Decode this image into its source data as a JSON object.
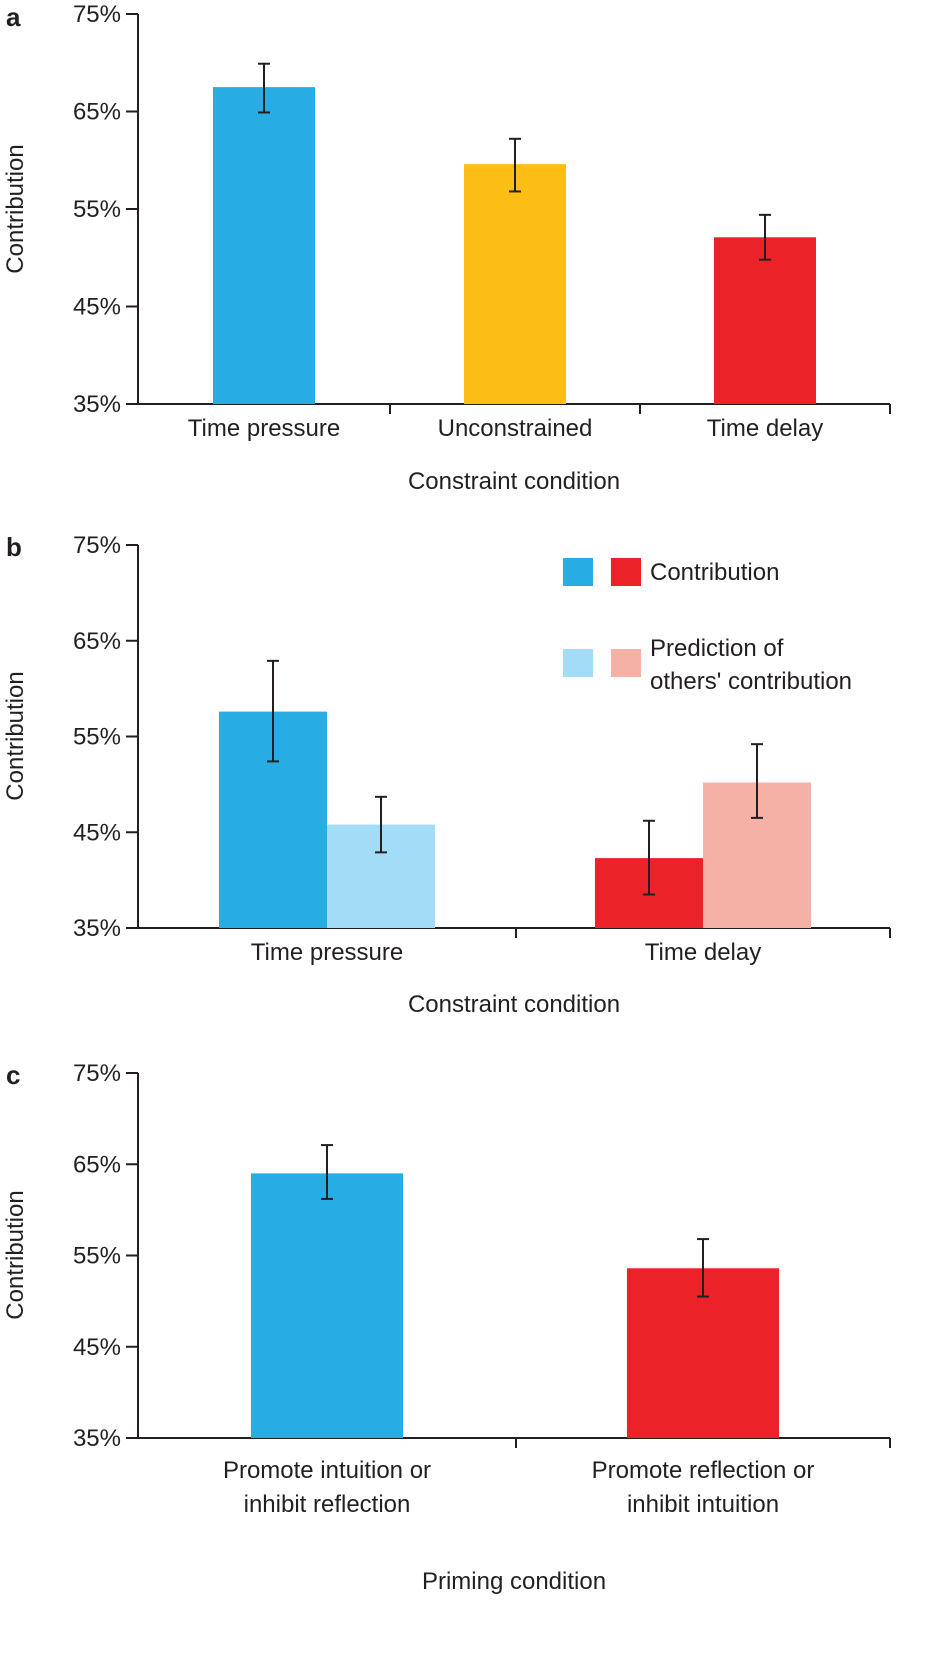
{
  "colors": {
    "blue": "#27ace3",
    "light_blue": "#a3dcf6",
    "yellow": "#fcbd14",
    "red": "#ec2229",
    "light_red": "#f6b1a7",
    "ink": "#231f20"
  },
  "chart_data": [
    {
      "panel": "a",
      "type": "bar",
      "ylabel": "Contribution",
      "xlabel": "Constraint condition",
      "ylim": [
        35,
        75
      ],
      "yticks": [
        35,
        45,
        55,
        65,
        75
      ],
      "ytick_labels": [
        "35%",
        "45%",
        "55%",
        "65%",
        "75%"
      ],
      "categories": [
        [
          "Time pressure"
        ],
        [
          "Unconstrained"
        ],
        [
          "Time delay"
        ]
      ],
      "series": [
        {
          "values": [
            67.5,
            59.6,
            52.1
          ],
          "error_low": [
            64.9,
            56.8,
            49.8
          ],
          "error_high": [
            69.9,
            62.2,
            54.4
          ],
          "colors": [
            "#27ace3",
            "#fcbd14",
            "#ec2229"
          ]
        }
      ],
      "grid": false
    },
    {
      "panel": "b",
      "type": "bar",
      "ylabel": "Contribution",
      "xlabel": "Constraint condition",
      "ylim": [
        35,
        75
      ],
      "yticks": [
        35,
        45,
        55,
        65,
        75
      ],
      "ytick_labels": [
        "35%",
        "45%",
        "55%",
        "65%",
        "75%"
      ],
      "categories": [
        [
          "Time pressure"
        ],
        [
          "Time delay"
        ]
      ],
      "series": [
        {
          "name": "Contribution",
          "values": [
            57.6,
            42.3
          ],
          "error_low": [
            52.4,
            38.5
          ],
          "error_high": [
            62.9,
            46.2
          ],
          "colors": [
            "#27ace3",
            "#ec2229"
          ]
        },
        {
          "name": "Prediction of others' contribution",
          "values": [
            45.8,
            50.2
          ],
          "error_low": [
            42.9,
            46.5
          ],
          "error_high": [
            48.7,
            54.2
          ],
          "colors": [
            "#a3dcf6",
            "#f6b1a7"
          ]
        }
      ],
      "legend": {
        "placement": "top-right",
        "entries": [
          {
            "label_lines": [
              "Contribution"
            ],
            "swatches": [
              "#27ace3",
              "#ec2229"
            ]
          },
          {
            "label_lines": [
              "Prediction of",
              "others' contribution"
            ],
            "swatches": [
              "#a3dcf6",
              "#f6b1a7"
            ]
          }
        ]
      },
      "grid": false
    },
    {
      "panel": "c",
      "type": "bar",
      "ylabel": "Contribution",
      "xlabel": "Priming condition",
      "ylim": [
        35,
        75
      ],
      "yticks": [
        35,
        45,
        55,
        65,
        75
      ],
      "ytick_labels": [
        "35%",
        "45%",
        "55%",
        "65%",
        "75%"
      ],
      "categories": [
        [
          "Promote intuition or",
          "inhibit reflection"
        ],
        [
          "Promote reflection or",
          "inhibit intuition"
        ]
      ],
      "series": [
        {
          "values": [
            64.0,
            53.6
          ],
          "error_low": [
            61.2,
            50.5
          ],
          "error_high": [
            67.1,
            56.8
          ],
          "colors": [
            "#27ace3",
            "#ec2229"
          ]
        }
      ],
      "grid": false
    }
  ]
}
